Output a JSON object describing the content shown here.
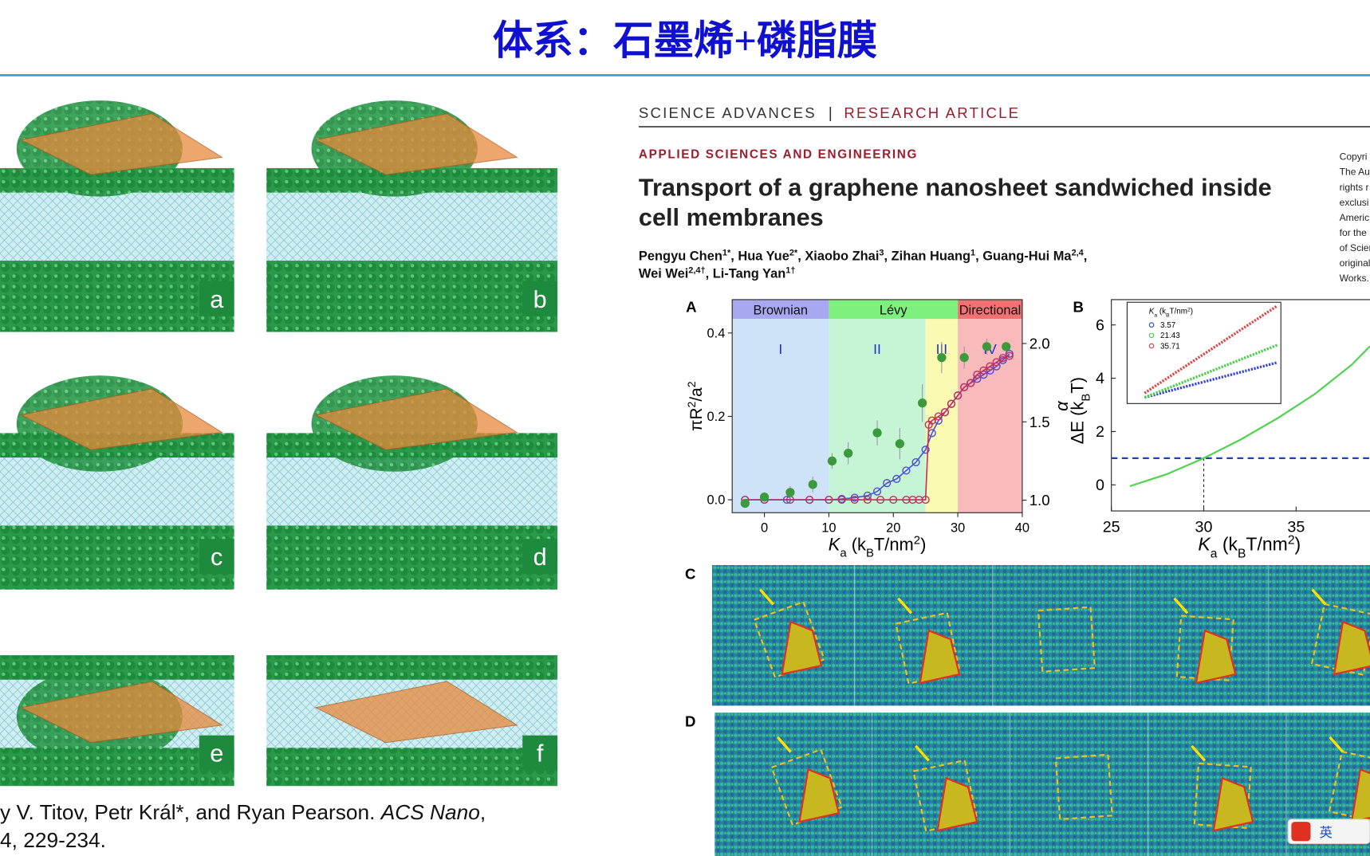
{
  "header": {
    "title": "体系：石墨烯+磷脂膜"
  },
  "left": {
    "panels": [
      "a",
      "b",
      "c",
      "d",
      "e",
      "f"
    ],
    "citation": {
      "line1": "y V. Titov, Petr Král*, and Ryan Pearson. ",
      "journal": "ACS Nano",
      "comma": ",",
      "line2": "4, 229-234."
    }
  },
  "article": {
    "journal": "SCIENCE ADVANCES",
    "separator": "|",
    "kind": "RESEARCH ARTICLE",
    "section": "APPLIED SCIENCES AND ENGINEERING",
    "title": [
      "Transport of a graphene nanosheet sandwiched inside",
      "cell membranes"
    ],
    "authors": [
      [
        {
          "text": "Pengyu Chen",
          "sup": "1*"
        },
        {
          "text": ", Hua Yue",
          "sup": "2*"
        },
        {
          "text": ", Xiaobo Zhai",
          "sup": "3"
        },
        {
          "text": ", Zihan Huang",
          "sup": "1"
        },
        {
          "text": ", Guang-Hui Ma",
          "sup": "2,4"
        },
        {
          "text": ","
        }
      ],
      [
        {
          "text": "Wei Wei",
          "sup": "2,4†"
        },
        {
          "text": ", Li-Tang Yan",
          "sup": "1†"
        }
      ]
    ],
    "sidebar": [
      "Copyri",
      "The Au",
      "rights r",
      "exclusi",
      "Americ",
      "for the",
      "of Scien",
      "original",
      "Works."
    ]
  },
  "figure_a": {
    "letter": "A",
    "xlim": [
      -5,
      40
    ],
    "ylim": [
      -0.031,
      0.48
    ],
    "y2lim": [
      0.92,
      2.28
    ],
    "xticks": [
      0,
      10,
      20,
      30,
      40
    ],
    "yticks": [
      {
        "value": 0,
        "label": "0.0"
      },
      {
        "value": 0.2,
        "label": "0.2"
      },
      {
        "value": 0.4,
        "label": "0.4"
      }
    ],
    "y2ticks": [
      {
        "value": 1,
        "label": "1.0"
      },
      {
        "value": 1.5,
        "label": "1.5"
      },
      {
        "value": 2,
        "label": "2.0"
      }
    ],
    "x_label": [
      "K",
      "a",
      " (k",
      "B",
      "T/nm",
      "2",
      ")"
    ],
    "y_label": [
      "πR",
      "2",
      "/a",
      "2"
    ],
    "y2_label": "α",
    "phases": [
      {
        "label": "Brownian",
        "from": -5,
        "to": 10,
        "color": "#a8a8f0"
      },
      {
        "label": "Lévy",
        "from": 10,
        "to": 30,
        "color": "#7ef07e"
      },
      {
        "label": "Directional",
        "from": 30,
        "to": 40,
        "color": "#f07272"
      }
    ],
    "regions": [
      {
        "label": "I",
        "from": -5,
        "to": 10,
        "color": "#cfe3f8"
      },
      {
        "label": "II",
        "from": 10,
        "to": 25,
        "color": "#c6f5d6"
      },
      {
        "label": "III",
        "from": 25,
        "to": 30,
        "color": "#fafab2"
      },
      {
        "label": "IV",
        "from": 30,
        "to": 40,
        "color": "#f8baba"
      }
    ],
    "series": [
      {
        "color": "#5050d0",
        "x": [
          -3,
          0,
          3.5,
          7,
          10,
          12,
          14,
          16,
          17.5,
          19,
          20.5,
          22,
          23.5,
          25,
          26,
          27,
          28,
          29,
          30,
          31,
          32,
          33,
          34,
          35,
          36,
          37,
          38
        ],
        "values": [
          0,
          0,
          0,
          0,
          0,
          0.002,
          0.005,
          0.01,
          0.02,
          0.04,
          0.05,
          0.07,
          0.09,
          0.12,
          0.16,
          0.19,
          0.21,
          0.23,
          0.25,
          0.27,
          0.28,
          0.29,
          0.3,
          0.31,
          0.32,
          0.335,
          0.35
        ]
      },
      {
        "color": "#c03060",
        "x": [
          -3,
          0,
          4,
          7,
          10,
          12,
          14,
          16,
          18,
          20,
          22,
          23,
          24,
          25,
          25.5,
          26,
          27,
          28,
          29,
          30,
          31,
          32,
          33,
          34,
          35,
          36,
          37,
          38
        ],
        "values": [
          0,
          0,
          0,
          0,
          0,
          0,
          0,
          0,
          0,
          0,
          0,
          0,
          0,
          0,
          0.18,
          0.19,
          0.2,
          0.21,
          0.23,
          0.25,
          0.27,
          0.28,
          0.3,
          0.31,
          0.32,
          0.33,
          0.34,
          0.345
        ]
      },
      {
        "color": "#3c9a3c",
        "axis": "y2",
        "filled": true,
        "x": [
          -3,
          0,
          4,
          7.5,
          10.5,
          13,
          17.5,
          21,
          24.5,
          27.5,
          31,
          34.5,
          37.5
        ],
        "values": [
          0.98,
          1.02,
          1.05,
          1.1,
          1.25,
          1.3,
          1.43,
          1.36,
          1.62,
          1.91,
          1.91,
          1.98,
          1.98
        ],
        "errors": [
          0.02,
          0.03,
          0.04,
          0.05,
          0.05,
          0.07,
          0.08,
          0.1,
          0.12,
          0.1,
          0.07,
          0.05,
          0.03
        ]
      }
    ]
  },
  "figure_b": {
    "letter": "B",
    "xlim": [
      25,
      39
    ],
    "ylim": [
      -0.98,
      6.95
    ],
    "xticks": [
      25,
      30,
      35
    ],
    "yticks": [
      0,
      2,
      4,
      6
    ],
    "x_label": [
      "K",
      "a",
      " (k",
      "B",
      "T/nm",
      "2",
      ")"
    ],
    "y_label": [
      "ΔE (k",
      "B",
      "T)"
    ],
    "threshold": {
      "x": 30,
      "y": 1
    },
    "curve": {
      "color": "#4cd44c",
      "x": [
        26,
        28,
        30,
        32,
        34,
        36,
        38,
        39
      ],
      "values": [
        -0.05,
        0.4,
        1,
        1.7,
        2.5,
        3.4,
        4.5,
        5.2
      ]
    },
    "inset": {
      "title": [
        "K",
        "a",
        " (k",
        "B",
        "T/nm",
        "2",
        ")"
      ],
      "legend": [
        {
          "name": "3.57",
          "color": "#3040e0"
        },
        {
          "name": "21.43",
          "color": "#40d040"
        },
        {
          "name": "35.71",
          "color": "#e04040"
        }
      ]
    }
  },
  "panels": {
    "c": "C",
    "d": "D"
  },
  "ime": "英"
}
